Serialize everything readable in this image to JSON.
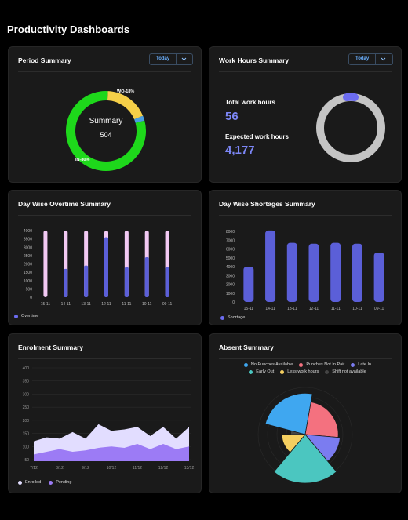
{
  "page_title": "Productivity Dashboards",
  "period_summary": {
    "title": "Period Summary",
    "dropdown_value": "Today",
    "center_title": "Summary",
    "center_value": "504",
    "label_wo": "WO-18%",
    "label_in": "IN-80%",
    "colors": {
      "in": "#1ed81b",
      "wo": "#f5cf48",
      "other": "#4a9ee0"
    }
  },
  "work_hours": {
    "title": "Work Hours Summary",
    "dropdown_value": "Today",
    "total_label": "Total work hours",
    "total_value": "56",
    "expected_label": "Expected work hours",
    "expected_value": "4,177"
  },
  "overtime": {
    "title": "Day Wise Overtime Summary",
    "legend": "Overtime",
    "chart_data": {
      "type": "bar",
      "categories": [
        "15-11",
        "14-11",
        "13-11",
        "12-11",
        "11-11",
        "10-11",
        "09-11"
      ],
      "values": [
        0,
        1700,
        1900,
        3600,
        1800,
        2400,
        1800
      ],
      "ylim": [
        0,
        4000
      ],
      "yticks": [
        "4000",
        "3500",
        "3000",
        "2500",
        "2000",
        "1500",
        "1000",
        "500",
        "0"
      ],
      "series": [
        {
          "name": "Overtime",
          "values": [
            0,
            1700,
            1900,
            3600,
            1800,
            2400,
            1800
          ]
        }
      ]
    }
  },
  "shortages": {
    "title": "Day Wise Shortages Summary",
    "legend": "Shortage",
    "chart_data": {
      "type": "bar",
      "categories": [
        "15-11",
        "14-11",
        "13-11",
        "12-11",
        "11-11",
        "10-11",
        "09-11"
      ],
      "values": [
        4000,
        8100,
        6700,
        6600,
        6700,
        6600,
        5600
      ],
      "ylim": [
        0,
        8000
      ],
      "yticks": [
        "8000",
        "7000",
        "6000",
        "5000",
        "4000",
        "3000",
        "2000",
        "1000",
        "0"
      ],
      "series": [
        {
          "name": "Shortage",
          "values": [
            4000,
            8100,
            6700,
            6600,
            6700,
            6600,
            5600
          ]
        }
      ]
    }
  },
  "enrolment": {
    "title": "Enrolment Summary",
    "legend_enrolled": "Enrolled",
    "legend_pending": "Pending",
    "chart_data": {
      "type": "area",
      "x_labels": [
        "8/12",
        "9/12",
        "10/12",
        "11/12",
        "12/12",
        "13/12"
      ],
      "x_label_prefix": "7/12",
      "yticks": [
        "400",
        "350",
        "300",
        "250",
        "200",
        "150",
        "100",
        "50"
      ],
      "ylim": [
        50,
        400
      ],
      "series": [
        {
          "name": "Enrolled",
          "values": [
            120,
            135,
            130,
            155,
            130,
            185,
            160,
            165,
            175,
            140,
            175,
            130,
            175
          ]
        },
        {
          "name": "Pending",
          "values": [
            70,
            80,
            90,
            80,
            85,
            95,
            100,
            95,
            110,
            90,
            110,
            90,
            100
          ]
        }
      ]
    }
  },
  "absent": {
    "title": "Absent Summary",
    "legend": [
      {
        "label": "No Punches Available",
        "color": "#3fa7f0"
      },
      {
        "label": "Punches Not In Pair",
        "color": "#f4717f"
      },
      {
        "label": "Late In",
        "color": "#7b7cf0"
      },
      {
        "label": "Early Out",
        "color": "#4bc6c0"
      },
      {
        "label": "Less work hours",
        "color": "#f5cf60"
      },
      {
        "label": "Shift not available",
        "color": "#444444"
      }
    ],
    "chart_data": {
      "type": "pie",
      "kind": "polar-area",
      "slices": [
        {
          "name": "No Punches Available",
          "angle_deg": 85,
          "radius": 0.85
        },
        {
          "name": "Punches Not In Pair",
          "angle_deg": 85,
          "radius": 0.68
        },
        {
          "name": "Late In",
          "angle_deg": 45,
          "radius": 0.72
        },
        {
          "name": "Early Out",
          "angle_deg": 80,
          "radius": 1.0
        },
        {
          "name": "Less work hours",
          "angle_deg": 50,
          "radius": 0.48
        },
        {
          "name": "Shift not available",
          "angle_deg": 15,
          "radius": 0.3
        }
      ]
    }
  }
}
